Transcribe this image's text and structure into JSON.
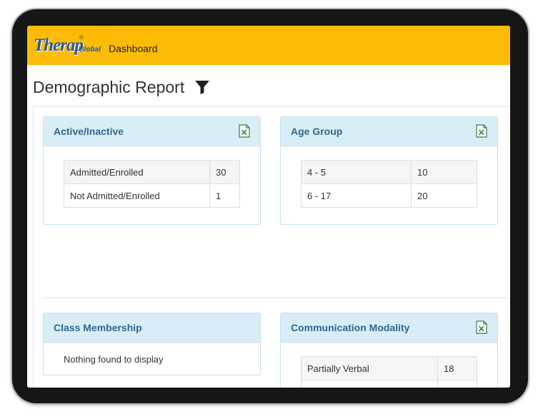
{
  "header": {
    "logo_text": "Therap",
    "logo_sub": "Global",
    "logo_reg": "®",
    "nav_dashboard": "Dashboard"
  },
  "page": {
    "title": "Demographic Report"
  },
  "panels": {
    "active_inactive": {
      "title": "Active/Inactive",
      "rows": [
        {
          "label": "Admitted/Enrolled",
          "value": "30"
        },
        {
          "label": "Not Admitted/Enrolled",
          "value": "1"
        }
      ]
    },
    "age_group": {
      "title": "Age Group",
      "rows": [
        {
          "label": "4 - 5",
          "value": "10"
        },
        {
          "label": "6 - 17",
          "value": "20"
        }
      ]
    },
    "class_membership": {
      "title": "Class Membership",
      "empty_message": "Nothing found to display"
    },
    "communication_modality": {
      "title": "Communication Modality",
      "rows": [
        {
          "label": "Partially Verbal",
          "value": "18"
        }
      ]
    }
  },
  "colors": {
    "header_bg": "#fbbb07",
    "panel_head_bg": "#d9edf7",
    "panel_title": "#2e6891",
    "excel_green": "#3a7a46"
  }
}
